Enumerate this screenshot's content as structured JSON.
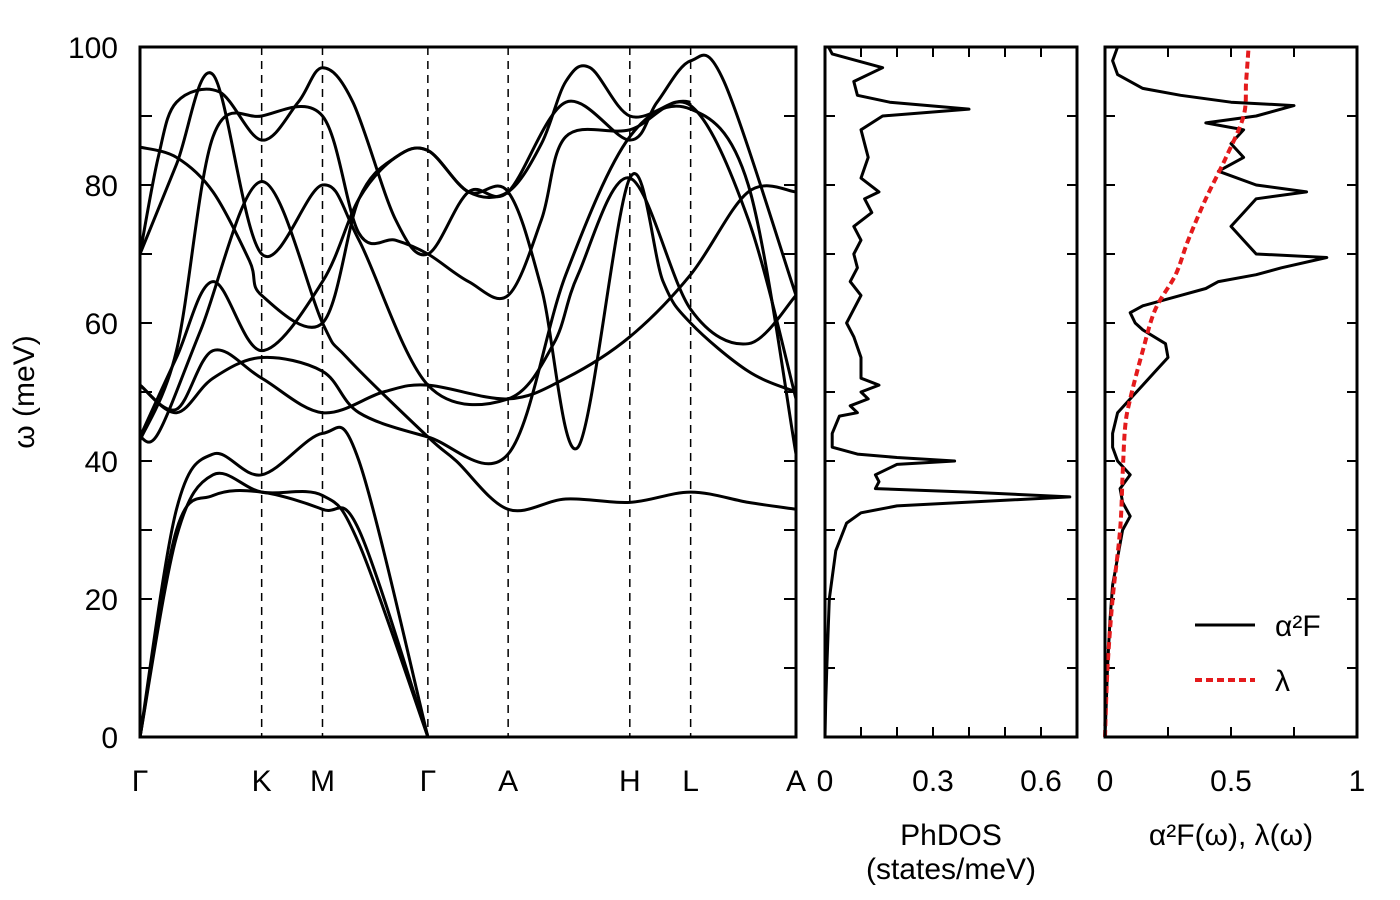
{
  "chart_data": [
    {
      "type": "line",
      "ylabel": "ω (meV)",
      "ylim": [
        0,
        100
      ],
      "yticks": [
        "0",
        "20",
        "40",
        "60",
        "80",
        "100"
      ],
      "high_symmetry_points": [
        "Γ",
        "K",
        "M",
        "Γ",
        "A",
        "H",
        "L",
        "A"
      ],
      "kpos": [
        0,
        1,
        1.5,
        2.366,
        3.026,
        4.026,
        4.526,
        5.392
      ],
      "series": [
        {
          "points": [
            [
              0,
              0
            ],
            [
              0.3,
              29
            ],
            [
              0.6,
              38
            ],
            [
              1,
              35.5
            ],
            [
              1.5,
              35
            ],
            [
              1.8,
              28
            ],
            [
              2.366,
              0
            ]
          ]
        },
        {
          "points": [
            [
              0,
              0
            ],
            [
              0.3,
              30
            ],
            [
              0.6,
              35
            ],
            [
              1,
              35.5
            ],
            [
              1.5,
              33
            ],
            [
              1.8,
              30
            ],
            [
              2.366,
              0
            ]
          ]
        },
        {
          "points": [
            [
              0,
              0
            ],
            [
              0.3,
              33
            ],
            [
              0.6,
              41
            ],
            [
              1,
              38
            ],
            [
              1.5,
              44
            ],
            [
              1.8,
              40
            ],
            [
              2.366,
              0
            ]
          ]
        },
        {
          "points": [
            [
              0,
              43.5
            ],
            [
              0.15,
              44
            ],
            [
              0.5,
              59
            ],
            [
              1,
              80.5
            ],
            [
              1.5,
              60
            ],
            [
              1.7,
              55
            ],
            [
              2.366,
              43.5
            ],
            [
              2.6,
              40
            ],
            [
              3.026,
              33
            ],
            [
              3.5,
              34.5
            ],
            [
              4.026,
              34
            ],
            [
              4.526,
              35.5
            ],
            [
              5,
              34
            ],
            [
              5.392,
              33
            ]
          ]
        },
        {
          "points": [
            [
              0,
              43.5
            ],
            [
              0.3,
              55
            ],
            [
              0.6,
              66
            ],
            [
              1,
              56
            ],
            [
              1.5,
              66
            ],
            [
              1.8,
              78
            ],
            [
              2.1,
              84
            ],
            [
              2.366,
              85
            ],
            [
              2.7,
              79
            ],
            [
              3.026,
              79
            ],
            [
              3.3,
              65
            ],
            [
              3.6,
              42
            ],
            [
              4.026,
              81
            ],
            [
              4.3,
              66
            ],
            [
              4.526,
              60
            ],
            [
              5,
              53
            ],
            [
              5.392,
              50
            ]
          ]
        },
        {
          "points": [
            [
              0,
              51
            ],
            [
              0.3,
              47
            ],
            [
              0.6,
              52
            ],
            [
              1,
              55
            ],
            [
              1.5,
              53
            ],
            [
              1.8,
              47
            ],
            [
              2.366,
              43.5
            ],
            [
              3.026,
              41
            ],
            [
              3.5,
              67
            ],
            [
              4.026,
              87
            ],
            [
              4.526,
              91
            ],
            [
              5,
              80
            ],
            [
              5.392,
              41
            ]
          ]
        },
        {
          "points": [
            [
              0,
              51
            ],
            [
              0.3,
              47.5
            ],
            [
              0.6,
              56
            ],
            [
              1,
              52
            ],
            [
              1.5,
              47
            ],
            [
              2,
              50
            ],
            [
              2.366,
              51
            ],
            [
              3.026,
              49
            ],
            [
              3.5,
              52
            ],
            [
              4.026,
              58
            ],
            [
              4.526,
              67
            ],
            [
              5,
              79
            ],
            [
              5.392,
              79
            ]
          ]
        },
        {
          "points": [
            [
              0,
              43
            ],
            [
              0.3,
              56
            ],
            [
              0.6,
              87
            ],
            [
              1,
              90
            ],
            [
              1.5,
              90
            ],
            [
              1.8,
              73
            ],
            [
              2.1,
              72
            ],
            [
              2.366,
              70
            ],
            [
              2.7,
              66
            ],
            [
              3.026,
              64
            ],
            [
              3.3,
              75
            ],
            [
              3.5,
              87
            ],
            [
              4.026,
              88
            ],
            [
              4.526,
              91.5
            ],
            [
              5,
              75
            ],
            [
              5.392,
              49
            ]
          ]
        },
        {
          "points": [
            [
              0,
              70
            ],
            [
              0.3,
              83
            ],
            [
              0.6,
              96
            ],
            [
              1,
              70
            ],
            [
              1.5,
              80
            ],
            [
              1.8,
              72
            ],
            [
              2.366,
              51
            ],
            [
              3.026,
              49
            ],
            [
              3.4,
              57
            ],
            [
              3.6,
              67
            ],
            [
              4.026,
              81
            ],
            [
              4.526,
              62
            ],
            [
              5,
              57
            ],
            [
              5.392,
              64
            ]
          ]
        },
        {
          "points": [
            [
              0,
              70
            ],
            [
              0.15,
              84
            ],
            [
              0.3,
              92
            ],
            [
              0.65,
              93.5
            ],
            [
              1,
              86.5
            ],
            [
              1.3,
              92
            ],
            [
              1.5,
              97
            ],
            [
              1.75,
              92
            ],
            [
              2.1,
              75
            ],
            [
              2.366,
              70
            ],
            [
              2.7,
              79
            ],
            [
              3.026,
              79
            ],
            [
              3.5,
              92
            ],
            [
              4.026,
              86.5
            ],
            [
              4.25,
              92
            ],
            [
              4.526,
              98
            ],
            [
              4.8,
              95
            ],
            [
              5.392,
              64
            ]
          ]
        },
        {
          "points": [
            [
              0,
              85.5
            ],
            [
              0.3,
              84
            ],
            [
              0.6,
              79
            ],
            [
              0.9,
              69
            ],
            [
              1,
              64
            ],
            [
              1.5,
              60
            ],
            [
              1.8,
              78
            ],
            [
              2.1,
              84
            ],
            [
              2.366,
              85
            ],
            [
              2.7,
              79
            ],
            [
              3.026,
              79
            ],
            [
              3.3,
              86
            ],
            [
              3.5,
              95
            ],
            [
              3.7,
              97
            ],
            [
              4.026,
              90
            ],
            [
              4.4,
              92
            ],
            [
              4.526,
              92
            ]
          ]
        }
      ]
    },
    {
      "type": "line",
      "xlabel": "PhDOS\n(states/meV)",
      "xlim": [
        0,
        0.7
      ],
      "xticks": [
        "0",
        "0.3",
        "0.6"
      ],
      "ylim": [
        0,
        100
      ],
      "series": [
        {
          "points": [
            [
              0,
              0
            ],
            [
              0.002,
              5
            ],
            [
              0.005,
              10
            ],
            [
              0.012,
              20
            ],
            [
              0.03,
              27
            ],
            [
              0.06,
              31
            ],
            [
              0.1,
              32.5
            ],
            [
              0.2,
              33.5
            ],
            [
              0.68,
              34.8
            ],
            [
              0.4,
              35.5
            ],
            [
              0.14,
              36
            ],
            [
              0.15,
              37
            ],
            [
              0.14,
              38
            ],
            [
              0.2,
              39.5
            ],
            [
              0.36,
              40
            ],
            [
              0.2,
              40.5
            ],
            [
              0.09,
              41
            ],
            [
              0.02,
              42
            ],
            [
              0.02,
              44
            ],
            [
              0.04,
              46.5
            ],
            [
              0.09,
              47
            ],
            [
              0.07,
              48
            ],
            [
              0.12,
              49
            ],
            [
              0.1,
              50
            ],
            [
              0.15,
              51
            ],
            [
              0.1,
              52
            ],
            [
              0.1,
              55
            ],
            [
              0.08,
              58
            ],
            [
              0.06,
              60
            ],
            [
              0.08,
              62
            ],
            [
              0.1,
              64
            ],
            [
              0.07,
              66
            ],
            [
              0.09,
              68
            ],
            [
              0.08,
              70
            ],
            [
              0.1,
              72
            ],
            [
              0.08,
              74
            ],
            [
              0.13,
              76
            ],
            [
              0.11,
              78
            ],
            [
              0.15,
              79
            ],
            [
              0.1,
              81
            ],
            [
              0.12,
              84
            ],
            [
              0.11,
              86
            ],
            [
              0.1,
              88
            ],
            [
              0.16,
              90
            ],
            [
              0.4,
              91
            ],
            [
              0.18,
              92
            ],
            [
              0.09,
              93
            ],
            [
              0.08,
              95
            ],
            [
              0.16,
              97
            ],
            [
              0.02,
              99
            ],
            [
              0.01,
              100
            ]
          ]
        }
      ]
    },
    {
      "type": "line",
      "xlabel": "α²F(ω), λ(ω)",
      "xlim": [
        0,
        1
      ],
      "xticks": [
        "0",
        "0.5",
        "1"
      ],
      "ylim": [
        0,
        100
      ],
      "legend": {
        "position": "bottom-right",
        "entries": [
          {
            "label": "α²F",
            "color": "#000000",
            "style": "solid"
          },
          {
            "label": "λ",
            "color": "#e41a1c",
            "style": "dashed"
          }
        ]
      },
      "series": [
        {
          "name": "α²F",
          "color": "#000000",
          "points": [
            [
              0,
              0
            ],
            [
              0.005,
              5
            ],
            [
              0.01,
              10
            ],
            [
              0.02,
              17
            ],
            [
              0.03,
              22
            ],
            [
              0.05,
              26
            ],
            [
              0.07,
              30
            ],
            [
              0.1,
              32
            ],
            [
              0.07,
              34
            ],
            [
              0.06,
              36
            ],
            [
              0.1,
              38
            ],
            [
              0.05,
              40
            ],
            [
              0.03,
              42
            ],
            [
              0.03,
              44
            ],
            [
              0.05,
              47
            ],
            [
              0.1,
              49
            ],
            [
              0.15,
              51
            ],
            [
              0.2,
              53
            ],
            [
              0.25,
              55
            ],
            [
              0.24,
              57
            ],
            [
              0.15,
              59
            ],
            [
              0.12,
              60
            ],
            [
              0.1,
              61.5
            ],
            [
              0.15,
              62.5
            ],
            [
              0.3,
              64
            ],
            [
              0.4,
              65
            ],
            [
              0.45,
              66
            ],
            [
              0.6,
              67
            ],
            [
              0.7,
              68
            ],
            [
              0.88,
              69.5
            ],
            [
              0.6,
              70
            ],
            [
              0.55,
              72
            ],
            [
              0.5,
              74
            ],
            [
              0.55,
              76
            ],
            [
              0.6,
              78
            ],
            [
              0.8,
              79
            ],
            [
              0.6,
              80
            ],
            [
              0.45,
              82
            ],
            [
              0.55,
              84
            ],
            [
              0.5,
              86
            ],
            [
              0.55,
              88
            ],
            [
              0.4,
              89
            ],
            [
              0.6,
              90
            ],
            [
              0.75,
              91.5
            ],
            [
              0.5,
              92
            ],
            [
              0.3,
              93
            ],
            [
              0.15,
              94
            ],
            [
              0.05,
              96
            ],
            [
              0.03,
              98
            ],
            [
              0.05,
              100
            ]
          ]
        },
        {
          "name": "λ",
          "color": "#e41a1c",
          "points": [
            [
              0,
              0
            ],
            [
              0.01,
              10
            ],
            [
              0.03,
              20
            ],
            [
              0.06,
              30
            ],
            [
              0.07,
              38
            ],
            [
              0.08,
              45
            ],
            [
              0.1,
              49
            ],
            [
              0.15,
              56
            ],
            [
              0.2,
              62
            ],
            [
              0.28,
              67
            ],
            [
              0.33,
              72
            ],
            [
              0.4,
              78
            ],
            [
              0.48,
              84
            ],
            [
              0.55,
              90
            ],
            [
              0.56,
              95
            ],
            [
              0.57,
              100
            ]
          ]
        }
      ]
    }
  ]
}
